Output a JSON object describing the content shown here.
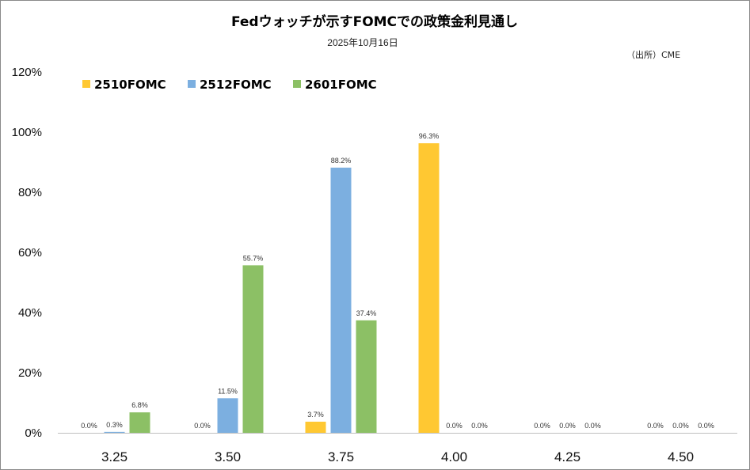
{
  "chart_data": {
    "type": "bar",
    "title": "Fedウォッチが示すFOMCでの政策金利見通し",
    "subtitle": "2025年10月16日",
    "source": "（出所）CME",
    "categories": [
      "3.25",
      "3.50",
      "3.75",
      "4.00",
      "4.25",
      "4.50"
    ],
    "series": [
      {
        "name": "2510FOMC",
        "color": "#FFC832",
        "values": [
          0.0,
          0.0,
          3.7,
          96.3,
          0.0,
          0.0
        ]
      },
      {
        "name": "2512FOMC",
        "color": "#7CAFE0",
        "values": [
          0.3,
          11.5,
          88.2,
          0.0,
          0.0,
          0.0
        ]
      },
      {
        "name": "2601FOMC",
        "color": "#8CC065",
        "values": [
          6.8,
          55.7,
          37.4,
          0.0,
          0.0,
          0.0
        ]
      }
    ],
    "data_labels": [
      [
        "0.0%",
        "0.0%",
        "3.7%",
        "96.3%",
        "0.0%",
        "0.0%"
      ],
      [
        "0.3%",
        "11.5%",
        "88.2%",
        "0.0%",
        "0.0%",
        "0.0%"
      ],
      [
        "6.8%",
        "55.7%",
        "37.4%",
        "0.0%",
        "0.0%",
        "0.0%"
      ]
    ],
    "yticks": [
      0,
      20,
      40,
      60,
      80,
      100,
      120
    ],
    "ytick_labels": [
      "0%",
      "20%",
      "40%",
      "60%",
      "80%",
      "100%",
      "120%"
    ],
    "ylim": [
      0,
      120
    ],
    "grid": false,
    "legend_position": "top-left"
  }
}
